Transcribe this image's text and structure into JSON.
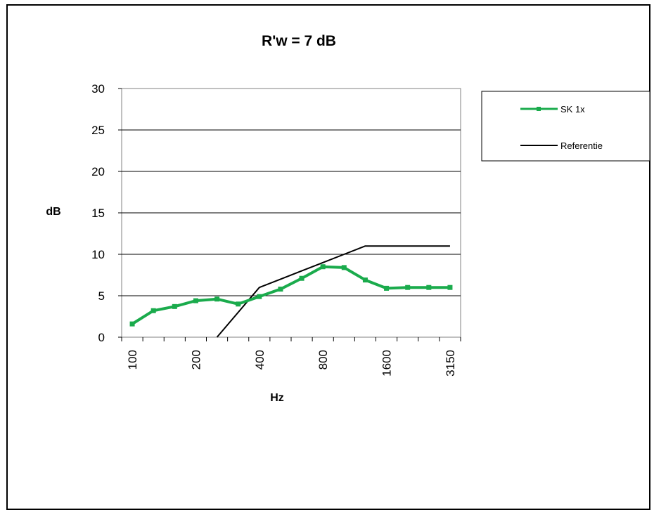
{
  "chart_data": {
    "type": "line",
    "title": "R'w =  7 dB",
    "xlabel": "Hz",
    "ylabel": "dB",
    "ylim": [
      0,
      30
    ],
    "yticks": [
      0,
      5,
      10,
      15,
      20,
      25,
      30
    ],
    "x": [
      "100",
      "125",
      "160",
      "200",
      "250",
      "315",
      "400",
      "500",
      "630",
      "800",
      "1000",
      "1250",
      "1600",
      "2000",
      "2500",
      "3150"
    ],
    "x_tick_labels": [
      "100",
      "200",
      "400",
      "800",
      "1600",
      "3150"
    ],
    "grid": "horizontal",
    "legend_position": "right",
    "series": [
      {
        "name": "SK 1x",
        "color": "#1aab4c",
        "marker": "square",
        "values": [
          1.6,
          3.2,
          3.7,
          4.4,
          4.6,
          4.0,
          4.9,
          5.8,
          7.1,
          8.5,
          8.4,
          6.9,
          5.9,
          6.0,
          6.0,
          6.0
        ]
      },
      {
        "name": "Referentie",
        "color": "#000000",
        "marker": "none",
        "values": [
          null,
          null,
          null,
          null,
          0.0,
          3.0,
          6.0,
          7.0,
          8.0,
          9.0,
          10.0,
          11.0,
          11.0,
          11.0,
          11.0,
          11.0
        ]
      }
    ]
  }
}
